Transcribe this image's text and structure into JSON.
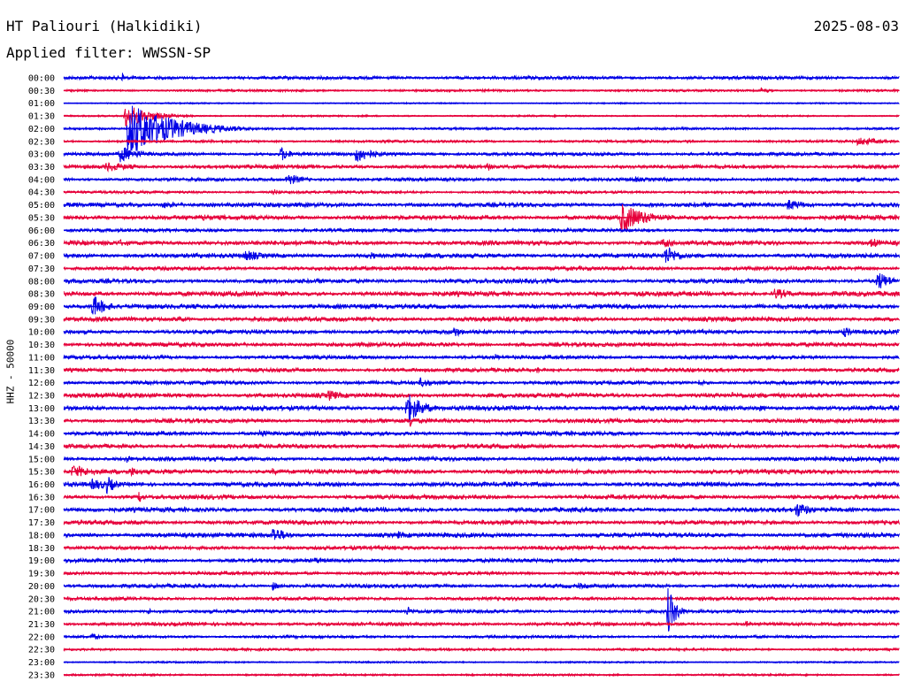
{
  "header": {
    "title": "HT Paliouri (Halkidiki)",
    "date": "2025-08-03",
    "filter_label": "Applied filter: WWSSN-SP"
  },
  "chart_data": {
    "type": "line",
    "title": "HT Paliouri (Halkidiki)",
    "ylabel": "HHZ - 50000",
    "row_times": [
      "00:00",
      "00:30",
      "01:00",
      "01:30",
      "02:00",
      "02:30",
      "03:00",
      "03:30",
      "04:00",
      "04:30",
      "05:00",
      "05:30",
      "06:00",
      "06:30",
      "07:00",
      "07:30",
      "08:00",
      "08:30",
      "09:00",
      "09:30",
      "10:00",
      "10:30",
      "11:00",
      "11:30",
      "12:00",
      "12:30",
      "13:00",
      "13:30",
      "14:00",
      "14:30",
      "15:00",
      "15:30",
      "16:00",
      "16:30",
      "17:00",
      "17:30",
      "18:00",
      "18:30",
      "19:00",
      "19:30",
      "20:00",
      "20:30",
      "21:00",
      "21:30",
      "22:00",
      "22:30",
      "23:00",
      "23:30"
    ],
    "row_colors": [
      "#0000e6",
      "#e6003a"
    ],
    "x_range_minutes": [
      0,
      30
    ],
    "noise": [
      2.0,
      1.3,
      0.8,
      1.0,
      1.3,
      1.5,
      2.0,
      2.2,
      2.0,
      1.6,
      2.5,
      2.6,
      2.0,
      2.6,
      2.6,
      2.2,
      2.5,
      2.8,
      2.6,
      2.6,
      2.4,
      2.4,
      2.2,
      2.2,
      2.2,
      2.6,
      2.6,
      2.4,
      2.4,
      2.4,
      2.4,
      2.6,
      2.6,
      2.5,
      2.6,
      2.4,
      2.6,
      2.2,
      2.2,
      2.0,
      2.2,
      2.0,
      2.0,
      2.0,
      1.6,
      1.4,
      1.0,
      1.2
    ],
    "events": [
      {
        "row": 0,
        "minute": 2.1,
        "amplitude": 8,
        "duration_min": 0.3
      },
      {
        "row": 1,
        "minute": 25.0,
        "amplitude": 4,
        "duration_min": 1.0
      },
      {
        "row": 3,
        "minute": 2.2,
        "amplitude": 14,
        "duration_min": 2.5
      },
      {
        "row": 4,
        "minute": 2.3,
        "amplitude": 32,
        "duration_min": 4.5
      },
      {
        "row": 5,
        "minute": 28.5,
        "amplitude": 5,
        "duration_min": 3.0
      },
      {
        "row": 6,
        "minute": 2.0,
        "amplitude": 10,
        "duration_min": 2.0
      },
      {
        "row": 6,
        "minute": 7.8,
        "amplitude": 9,
        "duration_min": 1.0
      },
      {
        "row": 6,
        "minute": 10.5,
        "amplitude": 10,
        "duration_min": 2.0
      },
      {
        "row": 7,
        "minute": 1.5,
        "amplitude": 6,
        "duration_min": 3.0
      },
      {
        "row": 7,
        "minute": 15.2,
        "amplitude": 6,
        "duration_min": 0.5
      },
      {
        "row": 8,
        "minute": 8.0,
        "amplitude": 8,
        "duration_min": 1.5
      },
      {
        "row": 8,
        "minute": 20.5,
        "amplitude": 4,
        "duration_min": 1.0
      },
      {
        "row": 8,
        "minute": 28.5,
        "amplitude": 4,
        "duration_min": 0.3
      },
      {
        "row": 9,
        "minute": 7.5,
        "amplitude": 4,
        "duration_min": 1.0
      },
      {
        "row": 10,
        "minute": 3.5,
        "amplitude": 4,
        "duration_min": 3.0
      },
      {
        "row": 10,
        "minute": 26.0,
        "amplitude": 7,
        "duration_min": 2.0
      },
      {
        "row": 11,
        "minute": 5.0,
        "amplitude": 5,
        "duration_min": 1.5
      },
      {
        "row": 11,
        "minute": 20.0,
        "amplitude": 18,
        "duration_min": 2.5
      },
      {
        "row": 13,
        "minute": 2.0,
        "amplitude": 4,
        "duration_min": 2.0
      },
      {
        "row": 13,
        "minute": 21.5,
        "amplitude": 6,
        "duration_min": 1.5
      },
      {
        "row": 13,
        "minute": 29.0,
        "amplitude": 7,
        "duration_min": 1.0
      },
      {
        "row": 14,
        "minute": 6.5,
        "amplitude": 7,
        "duration_min": 2.0
      },
      {
        "row": 14,
        "minute": 11.0,
        "amplitude": 5,
        "duration_min": 1.0
      },
      {
        "row": 14,
        "minute": 21.6,
        "amplitude": 12,
        "duration_min": 1.5
      },
      {
        "row": 16,
        "minute": 29.2,
        "amplitude": 12,
        "duration_min": 1.5
      },
      {
        "row": 17,
        "minute": 25.5,
        "amplitude": 7,
        "duration_min": 2.0
      },
      {
        "row": 18,
        "minute": 1.0,
        "amplitude": 14,
        "duration_min": 1.5
      },
      {
        "row": 19,
        "minute": 4.0,
        "amplitude": 4,
        "duration_min": 2.0
      },
      {
        "row": 20,
        "minute": 14.0,
        "amplitude": 7,
        "duration_min": 1.0
      },
      {
        "row": 20,
        "minute": 28.0,
        "amplitude": 7,
        "duration_min": 1.0
      },
      {
        "row": 22,
        "minute": 15.5,
        "amplitude": 4,
        "duration_min": 1.0
      },
      {
        "row": 23,
        "minute": 17.0,
        "amplitude": 5,
        "duration_min": 0.3
      },
      {
        "row": 24,
        "minute": 12.8,
        "amplitude": 6,
        "duration_min": 1.5
      },
      {
        "row": 24,
        "minute": 22.8,
        "amplitude": 4,
        "duration_min": 1.0
      },
      {
        "row": 25,
        "minute": 9.5,
        "amplitude": 7,
        "duration_min": 1.5
      },
      {
        "row": 25,
        "minute": 24.0,
        "amplitude": 4,
        "duration_min": 1.0
      },
      {
        "row": 26,
        "minute": 12.3,
        "amplitude": 20,
        "duration_min": 1.5
      },
      {
        "row": 26,
        "minute": 25.0,
        "amplitude": 4,
        "duration_min": 1.0
      },
      {
        "row": 27,
        "minute": 12.4,
        "amplitude": 10,
        "duration_min": 0.5
      },
      {
        "row": 28,
        "minute": 7.0,
        "amplitude": 5,
        "duration_min": 1.5
      },
      {
        "row": 28,
        "minute": 25.8,
        "amplitude": 5,
        "duration_min": 0.5
      },
      {
        "row": 29,
        "minute": 14.0,
        "amplitude": 5,
        "duration_min": 0.3
      },
      {
        "row": 30,
        "minute": 2.2,
        "amplitude": 5,
        "duration_min": 1.0
      },
      {
        "row": 30,
        "minute": 29.3,
        "amplitude": 5,
        "duration_min": 1.0
      },
      {
        "row": 31,
        "minute": 0.3,
        "amplitude": 8,
        "duration_min": 2.5
      },
      {
        "row": 31,
        "minute": 2.4,
        "amplitude": 6,
        "duration_min": 1.0
      },
      {
        "row": 31,
        "minute": 7.5,
        "amplitude": 4,
        "duration_min": 1.0
      },
      {
        "row": 32,
        "minute": 1.0,
        "amplitude": 7,
        "duration_min": 2.5
      },
      {
        "row": 32,
        "minute": 1.5,
        "amplitude": 12,
        "duration_min": 1.0
      },
      {
        "row": 33,
        "minute": 2.7,
        "amplitude": 8,
        "duration_min": 0.5
      },
      {
        "row": 34,
        "minute": 10.0,
        "amplitude": 4,
        "duration_min": 2.0
      },
      {
        "row": 34,
        "minute": 26.3,
        "amplitude": 10,
        "duration_min": 1.5
      },
      {
        "row": 36,
        "minute": 7.5,
        "amplitude": 10,
        "duration_min": 1.5
      },
      {
        "row": 36,
        "minute": 12.0,
        "amplitude": 5,
        "duration_min": 1.0
      },
      {
        "row": 38,
        "minute": 9.0,
        "amplitude": 4,
        "duration_min": 1.5
      },
      {
        "row": 40,
        "minute": 7.5,
        "amplitude": 5,
        "duration_min": 1.0
      },
      {
        "row": 40,
        "minute": 18.5,
        "amplitude": 4,
        "duration_min": 1.0
      },
      {
        "row": 42,
        "minute": 3.0,
        "amplitude": 4,
        "duration_min": 1.0
      },
      {
        "row": 42,
        "minute": 12.3,
        "amplitude": 6,
        "duration_min": 1.0
      },
      {
        "row": 42,
        "minute": 21.7,
        "amplitude": 28,
        "duration_min": 0.8
      },
      {
        "row": 43,
        "minute": 24.5,
        "amplitude": 4,
        "duration_min": 1.0
      },
      {
        "row": 44,
        "minute": 1.0,
        "amplitude": 4,
        "duration_min": 1.0
      }
    ]
  }
}
